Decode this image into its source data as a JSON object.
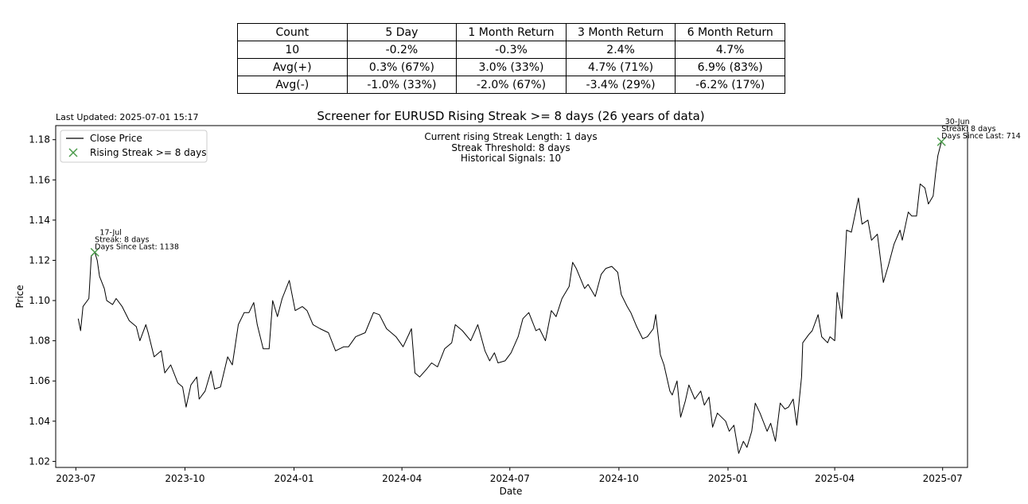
{
  "table": {
    "header": [
      "Count",
      "5 Day",
      "1 Month Return",
      "3 Month Return",
      "6 Month Return"
    ],
    "rows": [
      [
        "10",
        "-0.2%",
        "-0.3%",
        "2.4%",
        "4.7%"
      ],
      [
        "Avg(+)",
        "0.3% (67%)",
        "3.0% (33%)",
        "4.7% (71%)",
        "6.9% (83%)"
      ],
      [
        "Avg(-)",
        "-1.0% (33%)",
        "-2.0% (67%)",
        "-3.4% (29%)",
        "-6.2% (17%)"
      ]
    ]
  },
  "last_updated": "Last Updated: 2025-07-01 15:17",
  "chart_data": {
    "type": "line",
    "title": "Screener for EURUSD Rising Streak >= 8 days (26 years of data)",
    "xlabel": "Date",
    "ylabel": "Price",
    "xlim": [
      "2023-06-14",
      "2025-07-22"
    ],
    "ylim": [
      1.017,
      1.187
    ],
    "x_ticks": [
      "2023-07-01",
      "2023-10-01",
      "2024-01-01",
      "2024-04-01",
      "2024-07-01",
      "2024-10-01",
      "2025-01-01",
      "2025-04-01",
      "2025-07-01"
    ],
    "x_tick_labels": [
      "2023-07",
      "2023-10",
      "2024-01",
      "2024-04",
      "2024-07",
      "2024-10",
      "2025-01",
      "2025-04",
      "2025-07"
    ],
    "y_ticks": [
      1.02,
      1.04,
      1.06,
      1.08,
      1.1,
      1.12,
      1.14,
      1.16,
      1.18
    ],
    "y_tick_labels": [
      "1.02",
      "1.04",
      "1.06",
      "1.08",
      "1.10",
      "1.12",
      "1.14",
      "1.16",
      "1.18"
    ],
    "grid": false,
    "legend_position": "top-left",
    "series": [
      {
        "name": "Close Price",
        "color": "#000000",
        "points": [
          [
            "2023-07-03",
            1.091
          ],
          [
            "2023-07-05",
            1.085
          ],
          [
            "2023-07-07",
            1.097
          ],
          [
            "2023-07-12",
            1.101
          ],
          [
            "2023-07-14",
            1.122
          ],
          [
            "2023-07-17",
            1.124
          ],
          [
            "2023-07-19",
            1.12
          ],
          [
            "2023-07-21",
            1.112
          ],
          [
            "2023-07-25",
            1.106
          ],
          [
            "2023-07-27",
            1.1
          ],
          [
            "2023-08-01",
            1.098
          ],
          [
            "2023-08-04",
            1.101
          ],
          [
            "2023-08-09",
            1.097
          ],
          [
            "2023-08-15",
            1.09
          ],
          [
            "2023-08-21",
            1.087
          ],
          [
            "2023-08-24",
            1.08
          ],
          [
            "2023-08-29",
            1.088
          ],
          [
            "2023-08-31",
            1.084
          ],
          [
            "2023-09-05",
            1.072
          ],
          [
            "2023-09-11",
            1.075
          ],
          [
            "2023-09-14",
            1.064
          ],
          [
            "2023-09-19",
            1.068
          ],
          [
            "2023-09-25",
            1.059
          ],
          [
            "2023-09-29",
            1.057
          ],
          [
            "2023-10-02",
            1.047
          ],
          [
            "2023-10-06",
            1.058
          ],
          [
            "2023-10-11",
            1.062
          ],
          [
            "2023-10-13",
            1.051
          ],
          [
            "2023-10-18",
            1.055
          ],
          [
            "2023-10-23",
            1.065
          ],
          [
            "2023-10-26",
            1.056
          ],
          [
            "2023-10-31",
            1.057
          ],
          [
            "2023-11-06",
            1.072
          ],
          [
            "2023-11-10",
            1.068
          ],
          [
            "2023-11-15",
            1.088
          ],
          [
            "2023-11-20",
            1.094
          ],
          [
            "2023-11-24",
            1.094
          ],
          [
            "2023-11-28",
            1.099
          ],
          [
            "2023-12-01",
            1.088
          ],
          [
            "2023-12-06",
            1.076
          ],
          [
            "2023-12-11",
            1.076
          ],
          [
            "2023-12-14",
            1.1
          ],
          [
            "2023-12-18",
            1.092
          ],
          [
            "2023-12-22",
            1.101
          ],
          [
            "2023-12-28",
            1.11
          ],
          [
            "2024-01-02",
            1.095
          ],
          [
            "2024-01-08",
            1.097
          ],
          [
            "2024-01-12",
            1.095
          ],
          [
            "2024-01-17",
            1.088
          ],
          [
            "2024-01-23",
            1.086
          ],
          [
            "2024-01-30",
            1.084
          ],
          [
            "2024-02-05",
            1.075
          ],
          [
            "2024-02-12",
            1.077
          ],
          [
            "2024-02-16",
            1.077
          ],
          [
            "2024-02-22",
            1.082
          ],
          [
            "2024-03-01",
            1.084
          ],
          [
            "2024-03-08",
            1.094
          ],
          [
            "2024-03-13",
            1.093
          ],
          [
            "2024-03-19",
            1.086
          ],
          [
            "2024-03-21",
            1.085
          ],
          [
            "2024-03-27",
            1.082
          ],
          [
            "2024-04-02",
            1.077
          ],
          [
            "2024-04-09",
            1.086
          ],
          [
            "2024-04-12",
            1.064
          ],
          [
            "2024-04-16",
            1.062
          ],
          [
            "2024-04-22",
            1.066
          ],
          [
            "2024-04-26",
            1.069
          ],
          [
            "2024-05-01",
            1.067
          ],
          [
            "2024-05-07",
            1.076
          ],
          [
            "2024-05-13",
            1.079
          ],
          [
            "2024-05-16",
            1.088
          ],
          [
            "2024-05-22",
            1.085
          ],
          [
            "2024-05-29",
            1.08
          ],
          [
            "2024-06-04",
            1.088
          ],
          [
            "2024-06-10",
            1.075
          ],
          [
            "2024-06-14",
            1.07
          ],
          [
            "2024-06-18",
            1.074
          ],
          [
            "2024-06-21",
            1.069
          ],
          [
            "2024-06-27",
            1.07
          ],
          [
            "2024-07-02",
            1.074
          ],
          [
            "2024-07-08",
            1.082
          ],
          [
            "2024-07-12",
            1.091
          ],
          [
            "2024-07-17",
            1.094
          ],
          [
            "2024-07-23",
            1.085
          ],
          [
            "2024-07-26",
            1.086
          ],
          [
            "2024-07-31",
            1.08
          ],
          [
            "2024-08-05",
            1.095
          ],
          [
            "2024-08-09",
            1.092
          ],
          [
            "2024-08-14",
            1.101
          ],
          [
            "2024-08-20",
            1.107
          ],
          [
            "2024-08-23",
            1.119
          ],
          [
            "2024-08-26",
            1.116
          ],
          [
            "2024-09-02",
            1.106
          ],
          [
            "2024-09-05",
            1.108
          ],
          [
            "2024-09-11",
            1.102
          ],
          [
            "2024-09-16",
            1.113
          ],
          [
            "2024-09-20",
            1.116
          ],
          [
            "2024-09-25",
            1.117
          ],
          [
            "2024-09-30",
            1.114
          ],
          [
            "2024-10-03",
            1.103
          ],
          [
            "2024-10-08",
            1.097
          ],
          [
            "2024-10-11",
            1.094
          ],
          [
            "2024-10-16",
            1.087
          ],
          [
            "2024-10-21",
            1.081
          ],
          [
            "2024-10-25",
            1.082
          ],
          [
            "2024-10-30",
            1.086
          ],
          [
            "2024-11-01",
            1.093
          ],
          [
            "2024-11-05",
            1.073
          ],
          [
            "2024-11-08",
            1.068
          ],
          [
            "2024-11-13",
            1.055
          ],
          [
            "2024-11-15",
            1.053
          ],
          [
            "2024-11-19",
            1.06
          ],
          [
            "2024-11-22",
            1.042
          ],
          [
            "2024-11-26",
            1.05
          ],
          [
            "2024-11-29",
            1.058
          ],
          [
            "2024-12-04",
            1.051
          ],
          [
            "2024-12-09",
            1.055
          ],
          [
            "2024-12-12",
            1.048
          ],
          [
            "2024-12-16",
            1.052
          ],
          [
            "2024-12-19",
            1.037
          ],
          [
            "2024-12-23",
            1.044
          ],
          [
            "2024-12-30",
            1.04
          ],
          [
            "2025-01-02",
            1.035
          ],
          [
            "2025-01-06",
            1.038
          ],
          [
            "2025-01-10",
            1.024
          ],
          [
            "2025-01-14",
            1.03
          ],
          [
            "2025-01-17",
            1.027
          ],
          [
            "2025-01-21",
            1.035
          ],
          [
            "2025-01-24",
            1.049
          ],
          [
            "2025-01-28",
            1.044
          ],
          [
            "2025-02-03",
            1.035
          ],
          [
            "2025-02-06",
            1.039
          ],
          [
            "2025-02-10",
            1.03
          ],
          [
            "2025-02-14",
            1.049
          ],
          [
            "2025-02-18",
            1.046
          ],
          [
            "2025-02-21",
            1.047
          ],
          [
            "2025-02-25",
            1.051
          ],
          [
            "2025-02-28",
            1.038
          ],
          [
            "2025-03-04",
            1.062
          ],
          [
            "2025-03-05",
            1.079
          ],
          [
            "2025-03-10",
            1.083
          ],
          [
            "2025-03-13",
            1.085
          ],
          [
            "2025-03-18",
            1.093
          ],
          [
            "2025-03-21",
            1.082
          ],
          [
            "2025-03-26",
            1.079
          ],
          [
            "2025-03-28",
            1.082
          ],
          [
            "2025-04-01",
            1.08
          ],
          [
            "2025-04-03",
            1.104
          ],
          [
            "2025-04-07",
            1.091
          ],
          [
            "2025-04-11",
            1.135
          ],
          [
            "2025-04-15",
            1.134
          ],
          [
            "2025-04-21",
            1.151
          ],
          [
            "2025-04-24",
            1.138
          ],
          [
            "2025-04-29",
            1.14
          ],
          [
            "2025-05-02",
            1.13
          ],
          [
            "2025-05-07",
            1.133
          ],
          [
            "2025-05-12",
            1.109
          ],
          [
            "2025-05-16",
            1.117
          ],
          [
            "2025-05-21",
            1.128
          ],
          [
            "2025-05-26",
            1.135
          ],
          [
            "2025-05-28",
            1.13
          ],
          [
            "2025-06-02",
            1.144
          ],
          [
            "2025-06-05",
            1.142
          ],
          [
            "2025-06-09",
            1.142
          ],
          [
            "2025-06-12",
            1.158
          ],
          [
            "2025-06-16",
            1.156
          ],
          [
            "2025-06-19",
            1.148
          ],
          [
            "2025-06-23",
            1.152
          ],
          [
            "2025-06-25",
            1.163
          ],
          [
            "2025-06-27",
            1.172
          ],
          [
            "2025-06-30",
            1.179
          ]
        ]
      }
    ],
    "signals": {
      "name": "Rising Streak >= 8 days",
      "color": "#4a9a4a",
      "points": [
        {
          "x": "2023-07-17",
          "y": 1.124,
          "labels": [
            "17-Jul",
            "Streak: 8 days",
            "Days Since Last: 1138"
          ]
        },
        {
          "x": "2025-06-30",
          "y": 1.179,
          "labels": [
            "30-Jun",
            "Streak: 8 days",
            "Days Since Last: 714"
          ]
        }
      ]
    },
    "info_text": [
      "Current rising Streak Length: 1 days",
      "Streak Threshold: 8 days",
      "Historical Signals: 10"
    ]
  }
}
